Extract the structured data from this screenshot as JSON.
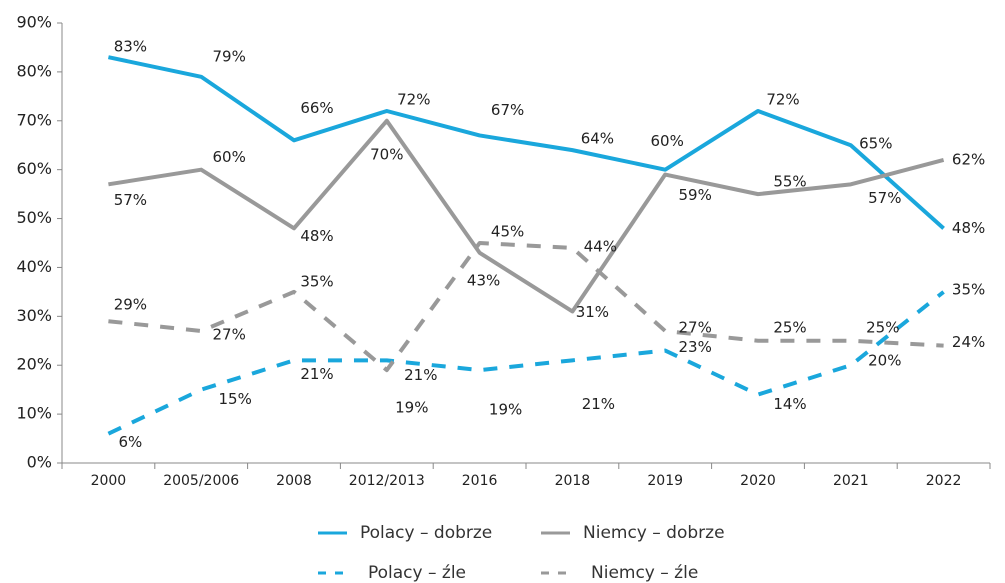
{
  "chart_data": {
    "type": "line",
    "categories": [
      "2000",
      "2005/2006",
      "2008",
      "2012/2013",
      "2016",
      "2018",
      "2019",
      "2020",
      "2021",
      "2022"
    ],
    "ylim": [
      0,
      90
    ],
    "yticks": [
      {
        "value": 0,
        "label": "0%"
      },
      {
        "value": 10,
        "label": "10%"
      },
      {
        "value": 20,
        "label": "20%"
      },
      {
        "value": 30,
        "label": "30%"
      },
      {
        "value": 40,
        "label": "40%"
      },
      {
        "value": 50,
        "label": "50%"
      },
      {
        "value": 60,
        "label": "60%"
      },
      {
        "value": 70,
        "label": "70%"
      },
      {
        "value": 80,
        "label": "80%"
      },
      {
        "value": 90,
        "label": "90%"
      }
    ],
    "series": [
      {
        "name": "Polacy – dobrze",
        "color": "#1aa7dc",
        "dashed": false,
        "values": [
          83,
          79,
          66,
          72,
          67,
          64,
          60,
          72,
          65,
          48
        ],
        "value_labels": [
          "83%",
          "79%",
          "66%",
          "72%",
          "67%",
          "64%",
          "60%",
          "72%",
          "65%",
          "48%"
        ]
      },
      {
        "name": "Niemcy – dobrze",
        "color": "#999999",
        "dashed": false,
        "values": [
          57,
          60,
          48,
          70,
          43,
          31,
          59,
          55,
          57,
          62
        ],
        "value_labels": [
          "57%",
          "60%",
          "48%",
          "70%",
          "43%",
          "31%",
          "59%",
          "55%",
          "57%",
          "62%"
        ]
      },
      {
        "name": "Polacy – źle",
        "color": "#1aa7dc",
        "dashed": true,
        "values": [
          6,
          15,
          21,
          21,
          19,
          21,
          23,
          14,
          20,
          35
        ],
        "value_labels": [
          "6%",
          "15%",
          "21%",
          "21%",
          "19%",
          "21%",
          "23%",
          "14%",
          "20%",
          "35%"
        ]
      },
      {
        "name": "Niemcy – źle",
        "color": "#999999",
        "dashed": true,
        "values": [
          29,
          27,
          35,
          19,
          45,
          44,
          27,
          25,
          25,
          24
        ],
        "value_labels": [
          "29%",
          "27%",
          "35%",
          "19%",
          "45%",
          "44%",
          "27%",
          "25%",
          "25%",
          "24%"
        ]
      }
    ],
    "legend": "bottom"
  }
}
